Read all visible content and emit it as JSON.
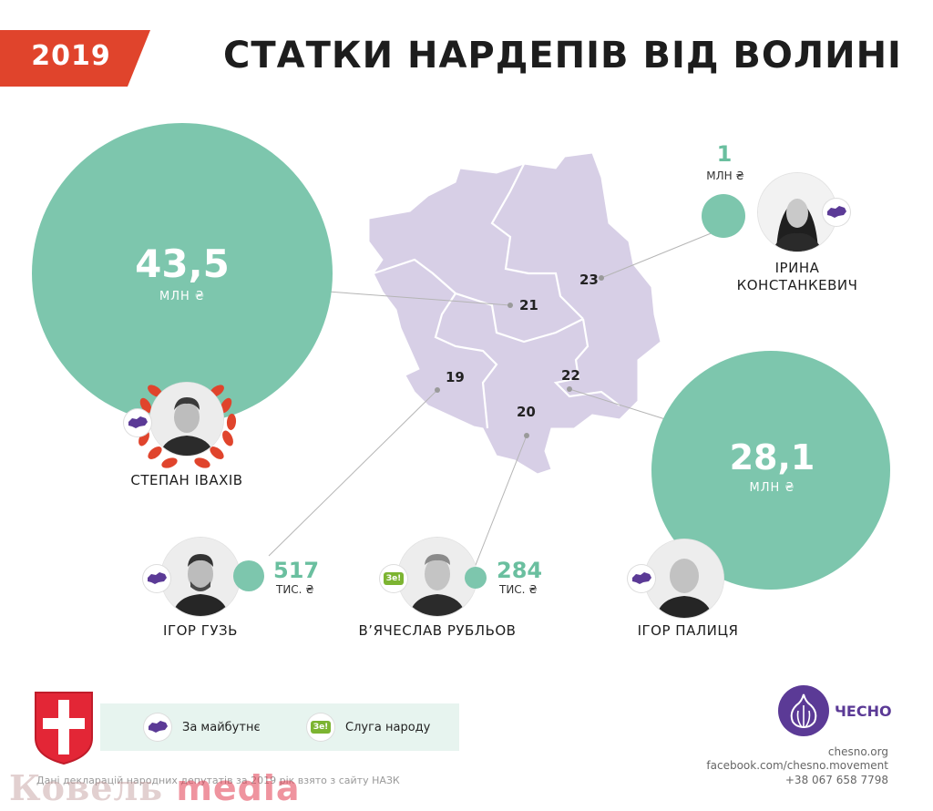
{
  "header": {
    "year": "2019",
    "title": "СТАТКИ НАРДЕПІВ ВІД ВОЛИНІ"
  },
  "districts": [
    "21",
    "23",
    "22",
    "19",
    "20"
  ],
  "deputies": [
    {
      "name": "СТЕПАН ІВАХІВ",
      "value": "43,5",
      "unit": "МЛН ₴",
      "district": "21",
      "party": "За майбутнє"
    },
    {
      "name": "ІРИНА КОНСТАНКЕВИЧ",
      "name_line1": "ІРИНА",
      "name_line2": "КОНСТАНКЕВИЧ",
      "value": "1",
      "unit": "МЛН ₴",
      "district": "23",
      "party": "За майбутнє"
    },
    {
      "name": "ІГОР ПАЛИЦЯ",
      "value": "28,1",
      "unit": "МЛН ₴",
      "district": "22",
      "party": "За майбутнє"
    },
    {
      "name": "ІГОР ГУЗЬ",
      "value": "517",
      "unit": "ТИС. ₴",
      "district": "19",
      "party": "За майбутнє"
    },
    {
      "name": "В’ЯЧЕСЛАВ РУБЛЬОВ",
      "value": "284",
      "unit": "ТИС. ₴",
      "district": "20",
      "party": "Слуга народу"
    }
  ],
  "legend": {
    "za_maybutnie": "За майбутнє",
    "sluha_narodu": "Слуга народу",
    "ze_badge": "Зе!"
  },
  "branding": {
    "logo_text": "ЧЕСНО",
    "site": "chesno.org",
    "facebook": "facebook.com/chesno.movement",
    "phone": "+38 067 658 7798"
  },
  "source": "Дані декларацій народних депутатів за 2019 рік взято з сайту НАЗК",
  "watermark": {
    "part1": "Ковель",
    "part2": "media"
  },
  "colors": {
    "accent_red": "#e0442c",
    "bubble_green": "#7dc6ad",
    "map_lilac": "#d7cfe6",
    "party_purple": "#5b3a96",
    "ze_green": "#7cb431"
  },
  "icons": [
    "ukraine-map-icon",
    "ze-badge-icon",
    "garlic-logo-icon",
    "coat-of-arms-icon",
    "laurel-wreath-icon"
  ]
}
